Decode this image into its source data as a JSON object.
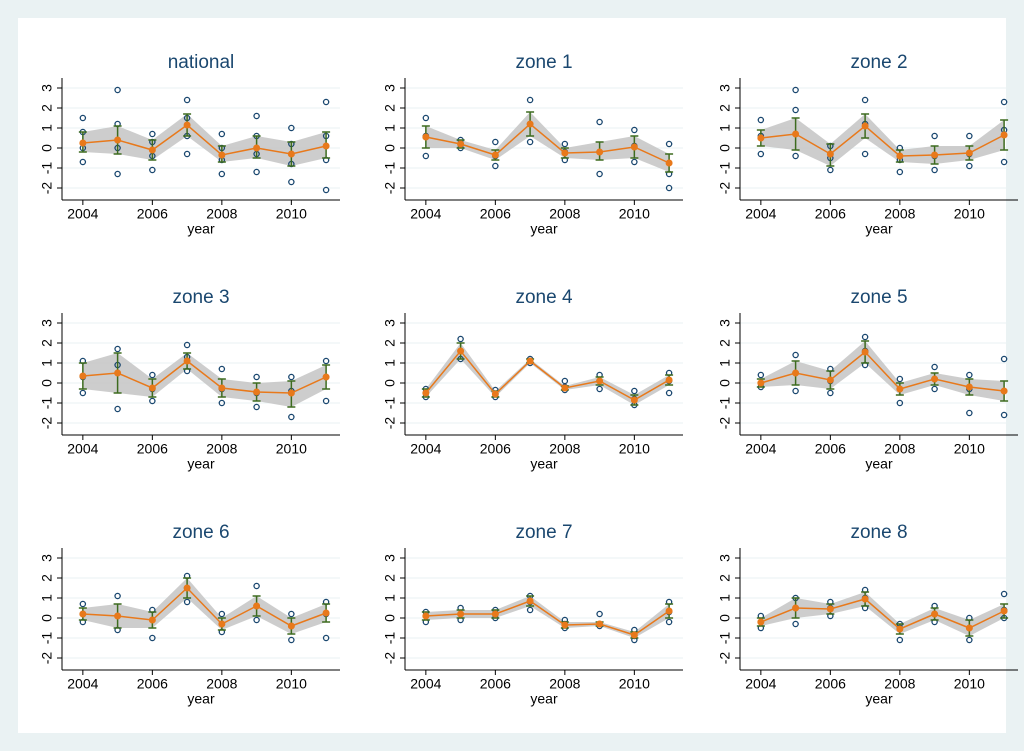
{
  "chart_data": [
    {
      "type": "line",
      "title": "national",
      "x_label": "year",
      "x": [
        2004,
        2005,
        2006,
        2007,
        2008,
        2009,
        2010,
        2011
      ],
      "values": [
        0.25,
        0.4,
        -0.1,
        1.15,
        -0.35,
        0.0,
        -0.3,
        0.1
      ],
      "ci_low": [
        -0.2,
        -0.3,
        -0.6,
        0.6,
        -0.7,
        -0.5,
        -0.9,
        -0.5
      ],
      "ci_high": [
        0.8,
        1.1,
        0.4,
        1.7,
        0.1,
        0.6,
        0.3,
        0.8
      ],
      "points": [
        [
          -0.7,
          0,
          0.8,
          1.5
        ],
        [
          -1.3,
          0,
          1.2,
          2.9
        ],
        [
          -1.1,
          -0.4,
          0.3,
          0.7
        ],
        [
          -0.3,
          0.6,
          1.5,
          2.4
        ],
        [
          -1.3,
          -0.6,
          0,
          0.7
        ],
        [
          -1.2,
          -0.3,
          0.6,
          1.6
        ],
        [
          -1.7,
          -0.8,
          0.2,
          1.0
        ],
        [
          -2.1,
          -0.6,
          0.6,
          2.3
        ]
      ],
      "xlim": [
        2003.4,
        2011.4
      ],
      "ylim": [
        -2.6,
        3.5
      ],
      "xticks": [
        2004,
        2006,
        2008,
        2010
      ],
      "yticks": [
        -2,
        -1,
        0,
        1,
        2,
        3
      ],
      "grid": true,
      "line_color": "#e8791b",
      "error_color": "#3d6b1f",
      "point_color": "#1a476f",
      "band_color": "#c4c4c4"
    },
    {
      "type": "line",
      "title": "zone 1",
      "x_label": "year",
      "x": [
        2004,
        2005,
        2006,
        2007,
        2008,
        2009,
        2010,
        2011
      ],
      "values": [
        0.55,
        0.2,
        -0.35,
        1.2,
        -0.25,
        -0.2,
        0.05,
        -0.75
      ],
      "ci_low": [
        0,
        0,
        -0.6,
        0.6,
        -0.5,
        -0.6,
        -0.5,
        -1.2
      ],
      "ci_high": [
        1.1,
        0.4,
        -0.1,
        1.8,
        0,
        0.3,
        0.6,
        -0.3
      ],
      "points": [
        [
          -0.4,
          0.6,
          1.5
        ],
        [
          0,
          0.2,
          0.4
        ],
        [
          -0.9,
          -0.4,
          0.3
        ],
        [
          0.3,
          1.2,
          2.4
        ],
        [
          -0.6,
          -0.2,
          0.2
        ],
        [
          -1.3,
          -0.2,
          1.3
        ],
        [
          -0.7,
          0.1,
          0.9
        ],
        [
          -2.0,
          -1.3,
          0.2
        ]
      ],
      "xlim": [
        2003.4,
        2011.4
      ],
      "ylim": [
        -2.6,
        3.5
      ],
      "xticks": [
        2004,
        2006,
        2008,
        2010
      ],
      "yticks": [
        -2,
        -1,
        0,
        1,
        2,
        3
      ],
      "grid": true,
      "line_color": "#e8791b",
      "error_color": "#3d6b1f",
      "point_color": "#1a476f",
      "band_color": "#c4c4c4"
    },
    {
      "type": "line",
      "title": "zone 2",
      "x_label": "year",
      "x": [
        2004,
        2005,
        2006,
        2007,
        2008,
        2009,
        2010,
        2011
      ],
      "values": [
        0.5,
        0.7,
        -0.3,
        1.1,
        -0.4,
        -0.35,
        -0.25,
        0.65
      ],
      "ci_low": [
        0.1,
        -0.1,
        -0.9,
        0.5,
        -0.7,
        -0.8,
        -0.6,
        -0.1
      ],
      "ci_high": [
        0.9,
        1.5,
        0.2,
        1.7,
        -0.1,
        0.1,
        0.1,
        1.4
      ],
      "points": [
        [
          -0.3,
          0.6,
          1.4
        ],
        [
          -0.4,
          1.9,
          2.9
        ],
        [
          -1.1,
          -0.5,
          0.1
        ],
        [
          -0.3,
          1.2,
          2.4
        ],
        [
          -1.2,
          -0.6,
          0
        ],
        [
          -1.1,
          -0.4,
          0.6
        ],
        [
          -0.9,
          -0.3,
          0.6
        ],
        [
          -0.7,
          0.9,
          2.3
        ]
      ],
      "xlim": [
        2003.4,
        2011.4
      ],
      "ylim": [
        -2.6,
        3.5
      ],
      "xticks": [
        2004,
        2006,
        2008,
        2010
      ],
      "yticks": [
        -2,
        -1,
        0,
        1,
        2,
        3
      ],
      "grid": true,
      "line_color": "#e8791b",
      "error_color": "#3d6b1f",
      "point_color": "#1a476f",
      "band_color": "#c4c4c4"
    },
    {
      "type": "line",
      "title": "zone 3",
      "x_label": "year",
      "x": [
        2004,
        2005,
        2006,
        2007,
        2008,
        2009,
        2010,
        2011
      ],
      "values": [
        0.35,
        0.5,
        -0.25,
        1.1,
        -0.25,
        -0.45,
        -0.5,
        0.3
      ],
      "ci_low": [
        -0.3,
        -0.5,
        -0.7,
        0.7,
        -0.7,
        -0.9,
        -1.2,
        -0.3
      ],
      "ci_high": [
        1.0,
        1.5,
        0.2,
        1.5,
        0.2,
        0,
        0.1,
        0.9
      ],
      "points": [
        [
          -0.5,
          0.3,
          1.1
        ],
        [
          -1.3,
          0.9,
          1.7
        ],
        [
          -0.9,
          -0.3,
          0.4
        ],
        [
          0.6,
          1.3,
          1.9
        ],
        [
          -1.0,
          -0.3,
          0.7
        ],
        [
          -1.2,
          -0.5,
          0.3
        ],
        [
          -1.7,
          -0.4,
          0.3
        ],
        [
          -0.9,
          0.3,
          1.1
        ]
      ],
      "xlim": [
        2003.4,
        2011.4
      ],
      "ylim": [
        -2.6,
        3.5
      ],
      "xticks": [
        2004,
        2006,
        2008,
        2010
      ],
      "yticks": [
        -2,
        -1,
        0,
        1,
        2,
        3
      ],
      "grid": true,
      "line_color": "#e8791b",
      "error_color": "#3d6b1f",
      "point_color": "#1a476f",
      "band_color": "#c4c4c4"
    },
    {
      "type": "line",
      "title": "zone 4",
      "x_label": "year",
      "x": [
        2004,
        2005,
        2006,
        2007,
        2008,
        2009,
        2010,
        2011
      ],
      "values": [
        -0.5,
        1.6,
        -0.55,
        1.1,
        -0.25,
        0.1,
        -0.85,
        0.15
      ],
      "ci_low": [
        -0.7,
        1.2,
        -0.7,
        1.0,
        -0.35,
        -0.1,
        -1.1,
        -0.1
      ],
      "ci_high": [
        -0.3,
        2.0,
        -0.4,
        1.2,
        -0.15,
        0.3,
        -0.6,
        0.4
      ],
      "points": [
        [
          -0.7,
          -0.5,
          -0.3
        ],
        [
          1.2,
          1.6,
          2.2
        ],
        [
          -0.7,
          -0.55,
          -0.35
        ],
        [
          1.0,
          1.1,
          1.2
        ],
        [
          -0.35,
          -0.2,
          0.1
        ],
        [
          -0.3,
          0.1,
          0.4
        ],
        [
          -1.1,
          -0.8,
          -0.4
        ],
        [
          -0.5,
          0.1,
          0.5
        ]
      ],
      "xlim": [
        2003.4,
        2011.4
      ],
      "ylim": [
        -2.6,
        3.5
      ],
      "xticks": [
        2004,
        2006,
        2008,
        2010
      ],
      "yticks": [
        -2,
        -1,
        0,
        1,
        2,
        3
      ],
      "grid": true,
      "line_color": "#e8791b",
      "error_color": "#3d6b1f",
      "point_color": "#1a476f",
      "band_color": "#c4c4c4"
    },
    {
      "type": "line",
      "title": "zone 5",
      "x_label": "year",
      "x": [
        2004,
        2005,
        2006,
        2007,
        2008,
        2009,
        2010,
        2011
      ],
      "values": [
        0.0,
        0.5,
        0.15,
        1.55,
        -0.3,
        0.2,
        -0.2,
        -0.4
      ],
      "ci_low": [
        -0.2,
        -0.1,
        -0.3,
        1.0,
        -0.6,
        -0.1,
        -0.6,
        -0.9
      ],
      "ci_high": [
        0.2,
        1.1,
        0.6,
        2.1,
        0,
        0.5,
        0.2,
        0.1
      ],
      "points": [
        [
          -0.2,
          0,
          0.4
        ],
        [
          -0.4,
          0.5,
          1.4
        ],
        [
          -0.5,
          0.1,
          0.7
        ],
        [
          0.9,
          1.6,
          2.3
        ],
        [
          -1.0,
          -0.3,
          0.2
        ],
        [
          -0.3,
          0.2,
          0.8
        ],
        [
          -1.5,
          -0.3,
          0.4
        ],
        [
          -1.6,
          -0.4,
          1.2
        ]
      ],
      "xlim": [
        2003.4,
        2011.4
      ],
      "ylim": [
        -2.6,
        3.5
      ],
      "xticks": [
        2004,
        2006,
        2008,
        2010
      ],
      "yticks": [
        -2,
        -1,
        0,
        1,
        2,
        3
      ],
      "grid": true,
      "line_color": "#e8791b",
      "error_color": "#3d6b1f",
      "point_color": "#1a476f",
      "band_color": "#c4c4c4"
    },
    {
      "type": "line",
      "title": "zone 6",
      "x_label": "year",
      "x": [
        2004,
        2005,
        2006,
        2007,
        2008,
        2009,
        2010,
        2011
      ],
      "values": [
        0.2,
        0.1,
        -0.1,
        1.5,
        -0.3,
        0.6,
        -0.4,
        0.25
      ],
      "ci_low": [
        -0.1,
        -0.5,
        -0.5,
        1.0,
        -0.6,
        0.1,
        -0.8,
        -0.2
      ],
      "ci_high": [
        0.5,
        0.7,
        0.3,
        2.0,
        0,
        1.1,
        0,
        0.7
      ],
      "points": [
        [
          -0.2,
          0.2,
          0.7
        ],
        [
          -0.6,
          0.1,
          1.1
        ],
        [
          -1.0,
          -0.1,
          0.4
        ],
        [
          0.8,
          1.5,
          2.1
        ],
        [
          -0.7,
          -0.3,
          0.2
        ],
        [
          -0.1,
          0.6,
          1.6
        ],
        [
          -1.1,
          -0.4,
          0.2
        ],
        [
          -1.0,
          0.2,
          0.8
        ]
      ],
      "xlim": [
        2003.4,
        2011.4
      ],
      "ylim": [
        -2.6,
        3.5
      ],
      "xticks": [
        2004,
        2006,
        2008,
        2010
      ],
      "yticks": [
        -2,
        -1,
        0,
        1,
        2,
        3
      ],
      "grid": true,
      "line_color": "#e8791b",
      "error_color": "#3d6b1f",
      "point_color": "#1a476f",
      "band_color": "#c4c4c4"
    },
    {
      "type": "line",
      "title": "zone 7",
      "x_label": "year",
      "x": [
        2004,
        2005,
        2006,
        2007,
        2008,
        2009,
        2010,
        2011
      ],
      "values": [
        0.1,
        0.2,
        0.2,
        0.85,
        -0.35,
        -0.3,
        -0.85,
        0.35
      ],
      "ci_low": [
        -0.1,
        0,
        0,
        0.6,
        -0.5,
        -0.4,
        -1.0,
        0
      ],
      "ci_high": [
        0.3,
        0.4,
        0.4,
        1.1,
        -0.2,
        -0.2,
        -0.7,
        0.7
      ],
      "points": [
        [
          -0.2,
          0.1,
          0.3
        ],
        [
          -0.1,
          0.2,
          0.5
        ],
        [
          0,
          0.2,
          0.4
        ],
        [
          0.4,
          0.8,
          1.1
        ],
        [
          -0.5,
          -0.3,
          -0.1
        ],
        [
          -0.4,
          -0.3,
          0.2
        ],
        [
          -1.1,
          -0.9,
          -0.6
        ],
        [
          -0.2,
          0.3,
          0.8
        ]
      ],
      "xlim": [
        2003.4,
        2011.4
      ],
      "ylim": [
        -2.6,
        3.5
      ],
      "xticks": [
        2004,
        2006,
        2008,
        2010
      ],
      "yticks": [
        -2,
        -1,
        0,
        1,
        2,
        3
      ],
      "grid": true,
      "line_color": "#e8791b",
      "error_color": "#3d6b1f",
      "point_color": "#1a476f",
      "band_color": "#c4c4c4"
    },
    {
      "type": "line",
      "title": "zone 8",
      "x_label": "year",
      "x": [
        2004,
        2005,
        2006,
        2007,
        2008,
        2009,
        2010,
        2011
      ],
      "values": [
        -0.2,
        0.5,
        0.45,
        0.95,
        -0.55,
        0.2,
        -0.5,
        0.35
      ],
      "ci_low": [
        -0.4,
        0,
        0.2,
        0.6,
        -0.8,
        -0.1,
        -0.9,
        0
      ],
      "ci_high": [
        0,
        1.0,
        0.7,
        1.3,
        -0.3,
        0.5,
        -0.1,
        0.7
      ],
      "points": [
        [
          -0.5,
          -0.2,
          0.1
        ],
        [
          -0.3,
          0.5,
          1.0
        ],
        [
          0.1,
          0.5,
          0.8
        ],
        [
          0.5,
          1.0,
          1.4
        ],
        [
          -1.1,
          -0.5,
          -0.3
        ],
        [
          -0.2,
          0.2,
          0.6
        ],
        [
          -1.1,
          -0.5,
          0
        ],
        [
          0,
          0.4,
          1.2
        ]
      ],
      "xlim": [
        2003.4,
        2011.4
      ],
      "ylim": [
        -2.6,
        3.5
      ],
      "xticks": [
        2004,
        2006,
        2008,
        2010
      ],
      "yticks": [
        -2,
        -1,
        0,
        1,
        2,
        3
      ],
      "grid": true,
      "line_color": "#e8791b",
      "error_color": "#3d6b1f",
      "point_color": "#1a476f",
      "band_color": "#c4c4c4"
    }
  ]
}
